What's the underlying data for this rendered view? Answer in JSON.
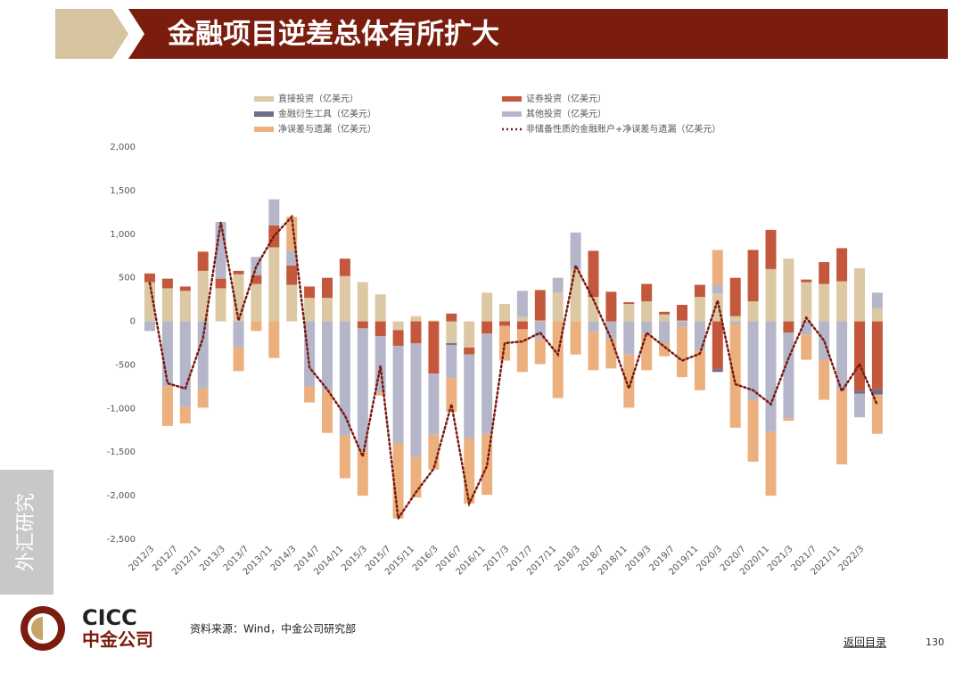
{
  "header": {
    "title": "金融项目逆差总体有所扩大"
  },
  "side_label": "外汇研究",
  "logo": {
    "text_en": "CICC",
    "text_cn": "中金公司"
  },
  "source": "资料来源：Wind，中金公司研究部",
  "nav": "返回目录",
  "page_number": "130",
  "chart_data": {
    "type": "bar",
    "stacked": true,
    "categories": [
      null,
      null,
      null,
      null,
      null,
      null,
      null,
      null,
      null,
      null,
      null,
      null,
      null,
      null,
      null,
      null,
      null,
      null,
      null,
      null,
      null,
      null,
      null,
      null,
      null,
      null,
      null,
      null,
      null,
      null,
      null,
      null,
      null,
      null,
      null,
      null,
      null,
      null,
      null,
      null,
      null,
      null
    ],
    "xtick_labels": [
      "2012/3",
      "2012/7",
      "2012/11",
      "2013/3",
      "2013/7",
      "2013/11",
      "2014/3",
      "2014/7",
      "2014/11",
      "2015/3",
      "2015/7",
      "2015/11",
      "2016/3",
      "2016/7",
      "2016/11",
      "2017/3",
      "2017/7",
      "2017/11",
      "2018/3",
      "2018/7",
      "2018/11",
      "2019/3",
      "2019/7",
      "2019/11",
      "2020/3",
      "2020/7",
      "2020/11",
      "2021/3",
      "2021/7",
      "2021/11",
      "2022/3"
    ],
    "series": [
      {
        "name": "直接投资（亿美元）",
        "color": "#dcc8a4",
        "values": [
          450,
          380,
          350,
          580,
          380,
          540,
          430,
          850,
          420,
          270,
          270,
          520,
          450,
          310,
          -100,
          60,
          10,
          -250,
          -300,
          330,
          200,
          50,
          10,
          330,
          600,
          280,
          0,
          200,
          230,
          80,
          10,
          280,
          320,
          60,
          230,
          600,
          720,
          450,
          430,
          460,
          610,
          150
        ]
      },
      {
        "name": "证券投资（亿美元）",
        "color": "#c4583c",
        "values": [
          100,
          110,
          50,
          220,
          110,
          40,
          100,
          250,
          220,
          130,
          230,
          200,
          -80,
          -170,
          -180,
          -250,
          -600,
          90,
          -80,
          -140,
          -50,
          -90,
          350,
          0,
          0,
          530,
          340,
          20,
          200,
          30,
          180,
          140,
          -550,
          440,
          590,
          450,
          -130,
          30,
          250,
          380,
          -800,
          -780
        ]
      },
      {
        "name": "金融衍生工具（亿美元）",
        "color": "#6e6e88",
        "values": [
          0,
          0,
          0,
          0,
          0,
          0,
          0,
          0,
          0,
          0,
          0,
          0,
          0,
          0,
          0,
          0,
          0,
          -20,
          0,
          0,
          0,
          0,
          0,
          0,
          0,
          0,
          0,
          0,
          0,
          0,
          0,
          0,
          -30,
          0,
          0,
          0,
          0,
          0,
          0,
          0,
          -30,
          -60
        ]
      },
      {
        "name": "其他投资（亿美元）",
        "color": "#b6b6ca",
        "values": [
          -110,
          -740,
          -980,
          -770,
          650,
          -300,
          210,
          300,
          170,
          -750,
          -800,
          -1310,
          -1400,
          -650,
          -1120,
          -1300,
          -700,
          -380,
          -960,
          -1150,
          0,
          300,
          -200,
          170,
          420,
          -120,
          -200,
          -380,
          -140,
          -250,
          -60,
          -330,
          100,
          -30,
          -900,
          -1270,
          -980,
          -150,
          -440,
          -780,
          -270,
          180
        ]
      },
      {
        "name": "净误差与遗漏（亿美元）",
        "color": "#ecb07e",
        "values": [
          0,
          -460,
          -190,
          -220,
          0,
          -270,
          -110,
          -420,
          390,
          -180,
          -480,
          -490,
          -520,
          -30,
          -860,
          -470,
          -400,
          -390,
          -750,
          -700,
          -400,
          -490,
          -290,
          -880,
          -380,
          -440,
          -340,
          -610,
          -420,
          -150,
          -580,
          -460,
          400,
          -1190,
          -710,
          -730,
          -30,
          -290,
          -460,
          -860,
          0,
          -450
        ]
      },
      {
        "name": "非储备性质的金融账户+净误差与遗漏（亿美元）",
        "color": "#7a1a10",
        "type": "line",
        "style": "dotted",
        "values": [
          440,
          -710,
          -770,
          -190,
          1140,
          10,
          630,
          980,
          1200,
          -530,
          -780,
          -1080,
          -1550,
          -510,
          -2260,
          -1960,
          -1690,
          -950,
          -2090,
          -1660,
          -250,
          -230,
          -130,
          -380,
          640,
          250,
          -200,
          -770,
          -130,
          -290,
          -450,
          -370,
          240,
          -720,
          -790,
          -950,
          -420,
          40,
          -220,
          -800,
          -490,
          -960
        ]
      }
    ],
    "ylim": [
      -2500,
      2000
    ],
    "yticks": [
      {
        "value": -2500,
        "label": "-2,500"
      },
      {
        "value": -2000,
        "label": "-2,000"
      },
      {
        "value": -1500,
        "label": "-1,500"
      },
      {
        "value": -1000,
        "label": "-1,000"
      },
      -500,
      0,
      500,
      {
        "value": 1000,
        "label": "1,000"
      },
      {
        "value": 1500,
        "label": "1,500"
      },
      {
        "value": 2000,
        "label": "2,000"
      }
    ],
    "grid": false
  }
}
